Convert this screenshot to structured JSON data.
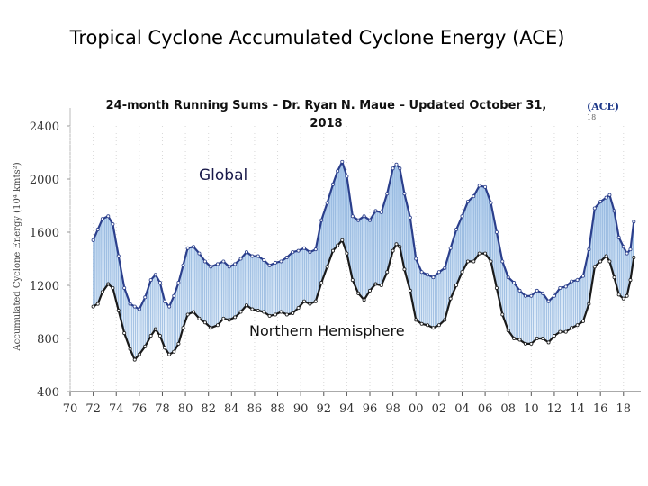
{
  "chart_data": {
    "type": "area",
    "title": "Tropical Cyclone Accumulated Cyclone Energy (ACE)",
    "subtitle": "24-month Running Sums – Dr. Ryan N. Maue – Updated October 31, 2018",
    "badge": "(ACE)",
    "badge_sub": "18",
    "ylabel": "Accumulated Cyclone Energy (10⁴ kmts²)",
    "xlabel": "",
    "ylim": [
      400,
      2400
    ],
    "yticks": [
      400,
      800,
      1200,
      1600,
      2000,
      2400
    ],
    "xlim": [
      1970,
      2019.5
    ],
    "xticks": [
      70,
      72,
      74,
      76,
      78,
      80,
      82,
      84,
      86,
      88,
      90,
      92,
      94,
      96,
      98,
      "00",
      "02",
      "04",
      "06",
      "08",
      10,
      12,
      14,
      16,
      18
    ],
    "annotations": [
      {
        "text": "Global",
        "series": "Global"
      },
      {
        "text": "Northern Hemisphere",
        "series": "Northern Hemisphere"
      }
    ],
    "series": [
      {
        "name": "Global",
        "color": "#2b3f8c",
        "points": [
          [
            1972.0,
            1540
          ],
          [
            1972.4,
            1620
          ],
          [
            1972.8,
            1700
          ],
          [
            1973.3,
            1720
          ],
          [
            1973.7,
            1660
          ],
          [
            1974.2,
            1420
          ],
          [
            1974.7,
            1180
          ],
          [
            1975.2,
            1060
          ],
          [
            1975.6,
            1040
          ],
          [
            1976.0,
            1020
          ],
          [
            1976.5,
            1110
          ],
          [
            1977.0,
            1240
          ],
          [
            1977.4,
            1280
          ],
          [
            1977.8,
            1220
          ],
          [
            1978.2,
            1080
          ],
          [
            1978.6,
            1040
          ],
          [
            1979.0,
            1120
          ],
          [
            1979.4,
            1220
          ],
          [
            1979.8,
            1350
          ],
          [
            1980.2,
            1480
          ],
          [
            1980.7,
            1490
          ],
          [
            1981.2,
            1440
          ],
          [
            1981.7,
            1380
          ],
          [
            1982.2,
            1340
          ],
          [
            1982.8,
            1360
          ],
          [
            1983.3,
            1380
          ],
          [
            1983.8,
            1340
          ],
          [
            1984.3,
            1360
          ],
          [
            1984.8,
            1400
          ],
          [
            1985.3,
            1450
          ],
          [
            1985.8,
            1420
          ],
          [
            1986.3,
            1420
          ],
          [
            1986.8,
            1390
          ],
          [
            1987.3,
            1350
          ],
          [
            1987.8,
            1370
          ],
          [
            1988.3,
            1380
          ],
          [
            1988.8,
            1410
          ],
          [
            1989.3,
            1450
          ],
          [
            1989.8,
            1460
          ],
          [
            1990.3,
            1480
          ],
          [
            1990.8,
            1450
          ],
          [
            1991.3,
            1470
          ],
          [
            1991.8,
            1690
          ],
          [
            1992.3,
            1820
          ],
          [
            1992.8,
            1960
          ],
          [
            1993.2,
            2060
          ],
          [
            1993.6,
            2130
          ],
          [
            1994.0,
            2020
          ],
          [
            1994.5,
            1720
          ],
          [
            1995.0,
            1690
          ],
          [
            1995.5,
            1720
          ],
          [
            1996.0,
            1690
          ],
          [
            1996.5,
            1760
          ],
          [
            1997.0,
            1750
          ],
          [
            1997.5,
            1890
          ],
          [
            1998.0,
            2080
          ],
          [
            1998.3,
            2110
          ],
          [
            1998.6,
            2080
          ],
          [
            1999.0,
            1890
          ],
          [
            1999.5,
            1710
          ],
          [
            2000.0,
            1400
          ],
          [
            2000.5,
            1300
          ],
          [
            2001.0,
            1280
          ],
          [
            2001.5,
            1260
          ],
          [
            2002.0,
            1300
          ],
          [
            2002.5,
            1330
          ],
          [
            2003.0,
            1480
          ],
          [
            2003.5,
            1620
          ],
          [
            2004.0,
            1720
          ],
          [
            2004.5,
            1830
          ],
          [
            2005.0,
            1870
          ],
          [
            2005.5,
            1950
          ],
          [
            2006.0,
            1940
          ],
          [
            2006.5,
            1820
          ],
          [
            2007.0,
            1600
          ],
          [
            2007.5,
            1380
          ],
          [
            2008.0,
            1260
          ],
          [
            2008.5,
            1220
          ],
          [
            2009.0,
            1160
          ],
          [
            2009.5,
            1120
          ],
          [
            2010.0,
            1120
          ],
          [
            2010.5,
            1160
          ],
          [
            2011.0,
            1140
          ],
          [
            2011.5,
            1080
          ],
          [
            2012.0,
            1120
          ],
          [
            2012.5,
            1180
          ],
          [
            2013.0,
            1190
          ],
          [
            2013.5,
            1230
          ],
          [
            2014.0,
            1240
          ],
          [
            2014.5,
            1270
          ],
          [
            2015.0,
            1470
          ],
          [
            2015.5,
            1780
          ],
          [
            2016.0,
            1830
          ],
          [
            2016.5,
            1860
          ],
          [
            2016.8,
            1880
          ],
          [
            2017.2,
            1760
          ],
          [
            2017.6,
            1560
          ],
          [
            2018.0,
            1490
          ],
          [
            2018.3,
            1440
          ],
          [
            2018.6,
            1470
          ],
          [
            2018.9,
            1680
          ]
        ]
      },
      {
        "name": "Northern Hemisphere",
        "color": "#1a1a1a",
        "points": [
          [
            1972.0,
            1040
          ],
          [
            1972.4,
            1060
          ],
          [
            1972.8,
            1150
          ],
          [
            1973.3,
            1210
          ],
          [
            1973.7,
            1180
          ],
          [
            1974.2,
            1010
          ],
          [
            1974.7,
            840
          ],
          [
            1975.2,
            720
          ],
          [
            1975.6,
            640
          ],
          [
            1976.0,
            680
          ],
          [
            1976.5,
            740
          ],
          [
            1977.0,
            820
          ],
          [
            1977.4,
            870
          ],
          [
            1977.8,
            820
          ],
          [
            1978.2,
            730
          ],
          [
            1978.6,
            680
          ],
          [
            1979.0,
            700
          ],
          [
            1979.4,
            760
          ],
          [
            1979.8,
            880
          ],
          [
            1980.2,
            980
          ],
          [
            1980.7,
            1000
          ],
          [
            1981.2,
            950
          ],
          [
            1981.7,
            920
          ],
          [
            1982.2,
            880
          ],
          [
            1982.8,
            900
          ],
          [
            1983.3,
            950
          ],
          [
            1983.8,
            940
          ],
          [
            1984.3,
            960
          ],
          [
            1984.8,
            1000
          ],
          [
            1985.3,
            1050
          ],
          [
            1985.8,
            1020
          ],
          [
            1986.3,
            1010
          ],
          [
            1986.8,
            1000
          ],
          [
            1987.3,
            970
          ],
          [
            1987.8,
            980
          ],
          [
            1988.3,
            1000
          ],
          [
            1988.8,
            980
          ],
          [
            1989.3,
            990
          ],
          [
            1989.8,
            1030
          ],
          [
            1990.3,
            1080
          ],
          [
            1990.8,
            1060
          ],
          [
            1991.3,
            1080
          ],
          [
            1991.8,
            1220
          ],
          [
            1992.3,
            1340
          ],
          [
            1992.8,
            1460
          ],
          [
            1993.2,
            1500
          ],
          [
            1993.6,
            1540
          ],
          [
            1994.0,
            1440
          ],
          [
            1994.5,
            1240
          ],
          [
            1995.0,
            1140
          ],
          [
            1995.5,
            1090
          ],
          [
            1996.0,
            1160
          ],
          [
            1996.5,
            1210
          ],
          [
            1997.0,
            1200
          ],
          [
            1997.5,
            1300
          ],
          [
            1998.0,
            1460
          ],
          [
            1998.3,
            1510
          ],
          [
            1998.6,
            1490
          ],
          [
            1999.0,
            1320
          ],
          [
            1999.5,
            1160
          ],
          [
            2000.0,
            940
          ],
          [
            2000.5,
            910
          ],
          [
            2001.0,
            900
          ],
          [
            2001.5,
            880
          ],
          [
            2002.0,
            900
          ],
          [
            2002.5,
            940
          ],
          [
            2003.0,
            1100
          ],
          [
            2003.5,
            1200
          ],
          [
            2004.0,
            1300
          ],
          [
            2004.5,
            1380
          ],
          [
            2005.0,
            1380
          ],
          [
            2005.5,
            1440
          ],
          [
            2006.0,
            1440
          ],
          [
            2006.5,
            1380
          ],
          [
            2007.0,
            1180
          ],
          [
            2007.5,
            980
          ],
          [
            2008.0,
            860
          ],
          [
            2008.5,
            800
          ],
          [
            2009.0,
            790
          ],
          [
            2009.5,
            760
          ],
          [
            2010.0,
            760
          ],
          [
            2010.5,
            800
          ],
          [
            2011.0,
            800
          ],
          [
            2011.5,
            770
          ],
          [
            2012.0,
            820
          ],
          [
            2012.5,
            850
          ],
          [
            2013.0,
            850
          ],
          [
            2013.5,
            880
          ],
          [
            2014.0,
            900
          ],
          [
            2014.5,
            930
          ],
          [
            2015.0,
            1060
          ],
          [
            2015.5,
            1340
          ],
          [
            2016.0,
            1380
          ],
          [
            2016.5,
            1420
          ],
          [
            2016.8,
            1380
          ],
          [
            2017.2,
            1260
          ],
          [
            2017.6,
            1130
          ],
          [
            2018.0,
            1100
          ],
          [
            2018.3,
            1120
          ],
          [
            2018.6,
            1240
          ],
          [
            2018.9,
            1410
          ]
        ]
      }
    ]
  }
}
